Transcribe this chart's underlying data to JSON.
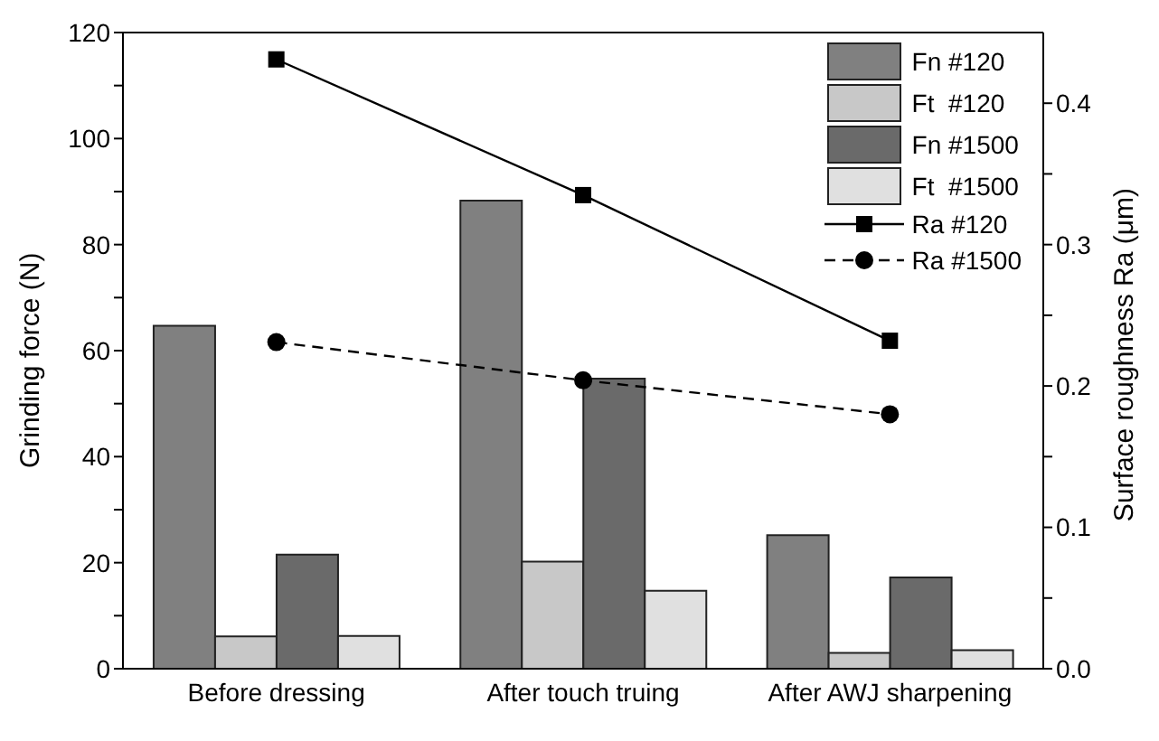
{
  "chart_data": {
    "type": "bar",
    "xlabel": null,
    "ylabel": "Grinding force (N)",
    "y2label": "Surface roughness Ra (μm)",
    "categories": [
      "Before dressing",
      "After touch truing",
      "After AWJ sharpening"
    ],
    "series": [
      {
        "name": "Fn #120",
        "color": "#808080",
        "values": [
          64.7,
          88.3,
          25.2
        ]
      },
      {
        "name": "Ft  #120",
        "color": "#c8c8c8",
        "values": [
          6.1,
          20.2,
          3.0
        ]
      },
      {
        "name": "Fn #1500",
        "color": "#6a6a6a",
        "values": [
          21.5,
          54.7,
          17.2
        ]
      },
      {
        "name": "Ft  #1500",
        "color": "#e0e0e0",
        "values": [
          6.2,
          14.7,
          3.5
        ]
      },
      {
        "name": "Ra #120",
        "type": "line",
        "axis": "y2",
        "color": "#000000",
        "marker": "square",
        "line_style": "solid",
        "values": [
          0.431,
          0.335,
          0.232
        ]
      },
      {
        "name": "Ra #1500",
        "type": "line",
        "axis": "y2",
        "color": "#000000",
        "marker": "circle",
        "line_style": "dashed",
        "values": [
          0.231,
          0.204,
          0.18
        ]
      }
    ],
    "ylim": [
      0,
      120
    ],
    "yticks": [
      0,
      {
        "value": 10,
        "label": null
      },
      20,
      {
        "value": 30,
        "label": null
      },
      40,
      {
        "value": 50,
        "label": null
      },
      60,
      {
        "value": 70,
        "label": null
      },
      80,
      {
        "value": 90,
        "label": null
      },
      100,
      {
        "value": 110,
        "label": null
      },
      120
    ],
    "y2lim": [
      0,
      0.45
    ],
    "y2ticks": [
      {
        "value": 0,
        "label": "0.0"
      },
      {
        "value": 0.05,
        "label": null
      },
      0.1,
      {
        "value": 0.15,
        "label": null
      },
      0.2,
      {
        "value": 0.25,
        "label": null
      },
      0.3,
      {
        "value": 0.35,
        "label": null
      },
      0.4
    ],
    "grid": false,
    "legend": "top right"
  }
}
